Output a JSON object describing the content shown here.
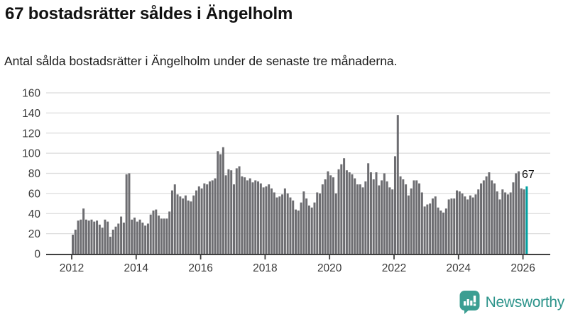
{
  "header": {
    "title": "67 bostadsrätter såldes i Ängelholm",
    "subtitle": "Antal sålda bostadsrätter i Ängelholm under de senaste tre månaderna."
  },
  "chart_data": {
    "type": "bar",
    "title": "67 bostadsrätter såldes i Ängelholm",
    "subtitle": "Antal sålda bostadsrätter i Ängelholm under de senaste tre månaderna.",
    "xlabel": "",
    "ylabel": "",
    "ylim": [
      0,
      160
    ],
    "yticks": [
      0,
      20,
      40,
      60,
      80,
      100,
      120,
      140,
      160
    ],
    "xticks": [
      2012,
      2014,
      2016,
      2018,
      2020,
      2022,
      2024,
      2026
    ],
    "x_start": "2012-01",
    "x_end": "2026-02",
    "x_freq": "monthly",
    "grid": true,
    "legend": "none",
    "bar_color": "#6d6d71",
    "grid_color": "#dcdcdc",
    "axis_color": "#3f3f3f",
    "tick_label_color": "#3a3a3a",
    "values": [
      19,
      24,
      33,
      34,
      45,
      34,
      33,
      34,
      32,
      33,
      29,
      26,
      34,
      32,
      17,
      24,
      27,
      30,
      37,
      31,
      79,
      80,
      34,
      36,
      32,
      34,
      31,
      28,
      30,
      39,
      43,
      44,
      38,
      35,
      35,
      35,
      42,
      63,
      69,
      59,
      57,
      55,
      58,
      53,
      52,
      58,
      63,
      67,
      65,
      70,
      69,
      72,
      73,
      75,
      102,
      99,
      106,
      78,
      84,
      83,
      69,
      85,
      87,
      77,
      76,
      73,
      75,
      71,
      73,
      72,
      70,
      66,
      67,
      69,
      65,
      61,
      56,
      57,
      59,
      65,
      60,
      56,
      53,
      44,
      43,
      51,
      62,
      55,
      48,
      46,
      51,
      61,
      60,
      69,
      74,
      82,
      78,
      76,
      60,
      84,
      89,
      95,
      83,
      81,
      79,
      75,
      69,
      69,
      66,
      72,
      90,
      81,
      74,
      81,
      68,
      73,
      80,
      72,
      66,
      64,
      97,
      138,
      77,
      74,
      69,
      58,
      65,
      73,
      73,
      70,
      61,
      47,
      49,
      50,
      55,
      57,
      46,
      43,
      41,
      45,
      54,
      55,
      55,
      63,
      62,
      60,
      57,
      54,
      58,
      56,
      59,
      64,
      70,
      73,
      77,
      81,
      73,
      70,
      62,
      54,
      64,
      61,
      59,
      61,
      71,
      80,
      82,
      65,
      64,
      67
    ],
    "highlight": {
      "index": 169,
      "value": 67,
      "label": "67",
      "color": "#00a1a1",
      "label_color": "#111111"
    }
  },
  "footer": {
    "brand": "Newsworthy",
    "logo_color": "#3b9e92",
    "text_color": "#2d948b"
  }
}
